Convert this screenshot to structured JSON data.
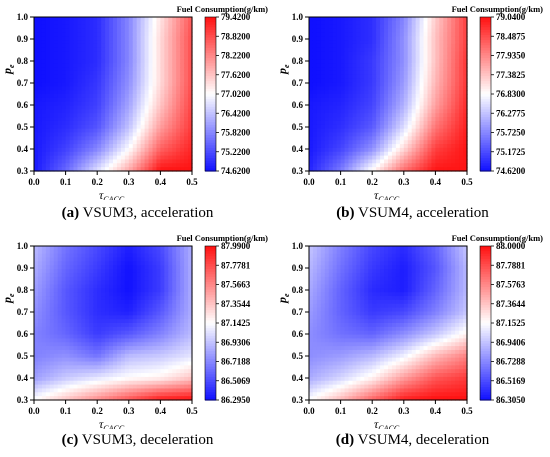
{
  "colors": {
    "low": "#1010ff",
    "mid": "#ffffff",
    "high": "#ff1010"
  },
  "chart_data": [
    {
      "type": "heatmap",
      "panel_letter": "(a)",
      "caption_rest": " VSUM3, acceleration",
      "colorbar_title": "Fuel Consumption(g/km)",
      "colorbar_ticks": [
        "79.4200",
        "78.8200",
        "78.2200",
        "77.6200",
        "77.0200",
        "76.4200",
        "75.8200",
        "75.2200",
        "74.6200"
      ],
      "zlim": [
        74.62,
        79.42
      ],
      "xlabel_main": "τ",
      "xlabel_sub": "CACC",
      "ylabel_main": "p",
      "ylabel_sub": "e",
      "xlim": [
        0.0,
        0.5
      ],
      "ylim": [
        0.3,
        1.0
      ],
      "x_ticks": [
        "0.0",
        "0.1",
        "0.2",
        "0.3",
        "0.4",
        "0.5"
      ],
      "y_ticks": [
        "0.3",
        "0.4",
        "0.5",
        "0.6",
        "0.7",
        "0.8",
        "0.9",
        "1.0"
      ],
      "x": [
        0.0,
        0.1,
        0.2,
        0.3,
        0.4,
        0.5
      ],
      "y": [
        0.3,
        0.4,
        0.5,
        0.6,
        0.7,
        0.8,
        0.9,
        1.0
      ],
      "z": [
        [
          74.7,
          75.5,
          76.7,
          77.9,
          79.4,
          79.4
        ],
        [
          74.7,
          75.1,
          75.8,
          77.0,
          78.6,
          79.2
        ],
        [
          74.7,
          74.9,
          75.3,
          76.4,
          78.0,
          79.0
        ],
        [
          74.7,
          74.8,
          75.1,
          76.1,
          77.6,
          78.9
        ],
        [
          74.6,
          74.7,
          75.0,
          75.9,
          77.4,
          78.8
        ],
        [
          74.6,
          74.7,
          74.9,
          75.8,
          77.4,
          78.8
        ],
        [
          74.6,
          74.7,
          74.9,
          75.8,
          77.4,
          78.8
        ],
        [
          74.6,
          74.7,
          74.9,
          75.8,
          77.3,
          78.7
        ]
      ]
    },
    {
      "type": "heatmap",
      "panel_letter": "(b)",
      "caption_rest": " VSUM4, acceleration",
      "colorbar_title": "Fuel Consumption(g/km)",
      "colorbar_ticks": [
        "79.0400",
        "78.4875",
        "77.9350",
        "77.3825",
        "76.8300",
        "76.2775",
        "75.7250",
        "75.1725",
        "74.6200"
      ],
      "zlim": [
        74.62,
        79.04
      ],
      "xlabel_main": "τ",
      "xlabel_sub": "CACC",
      "ylabel_main": "p",
      "ylabel_sub": "e",
      "xlim": [
        0.0,
        0.5
      ],
      "ylim": [
        0.3,
        1.0
      ],
      "x_ticks": [
        "0.0",
        "0.1",
        "0.2",
        "0.3",
        "0.4",
        "0.5"
      ],
      "y_ticks": [
        "0.3",
        "0.4",
        "0.5",
        "0.6",
        "0.7",
        "0.8",
        "0.9",
        "1.0"
      ],
      "x": [
        0.0,
        0.1,
        0.2,
        0.3,
        0.4,
        0.5
      ],
      "y": [
        0.3,
        0.4,
        0.5,
        0.6,
        0.7,
        0.8,
        0.9,
        1.0
      ],
      "z": [
        [
          74.8,
          75.6,
          76.9,
          78.2,
          79.0,
          79.0
        ],
        [
          74.7,
          75.1,
          75.8,
          77.2,
          78.6,
          79.0
        ],
        [
          74.7,
          74.9,
          75.3,
          76.5,
          78.1,
          78.9
        ],
        [
          74.7,
          74.8,
          75.1,
          76.1,
          77.7,
          78.8
        ],
        [
          74.6,
          74.7,
          75.0,
          75.9,
          77.5,
          78.7
        ],
        [
          74.6,
          74.7,
          75.0,
          75.8,
          77.4,
          78.7
        ],
        [
          74.6,
          74.7,
          74.9,
          75.8,
          77.4,
          78.6
        ],
        [
          74.6,
          74.7,
          74.9,
          75.7,
          77.3,
          78.6
        ]
      ]
    },
    {
      "type": "heatmap",
      "panel_letter": "(c)",
      "caption_rest": " VSUM3, deceleration",
      "colorbar_title": "Fuel Consumption(g/km)",
      "colorbar_ticks": [
        "87.9900",
        "87.7781",
        "87.5663",
        "87.3544",
        "87.1425",
        "86.9306",
        "86.7188",
        "86.5069",
        "86.2950"
      ],
      "zlim": [
        86.295,
        87.99
      ],
      "xlabel_main": "τ",
      "xlabel_sub": "CACC",
      "ylabel_main": "p",
      "ylabel_sub": "e",
      "xlim": [
        0.0,
        0.5
      ],
      "ylim": [
        0.3,
        1.0
      ],
      "x_ticks": [
        "0.0",
        "0.1",
        "0.2",
        "0.3",
        "0.4",
        "0.5"
      ],
      "y_ticks": [
        "0.3",
        "0.4",
        "0.5",
        "0.6",
        "0.7",
        "0.8",
        "0.9",
        "1.0"
      ],
      "x": [
        0.0,
        0.1,
        0.2,
        0.3,
        0.4,
        0.5
      ],
      "y": [
        0.3,
        0.4,
        0.5,
        0.6,
        0.7,
        0.8,
        0.9,
        1.0
      ],
      "z": [
        [
          87.15,
          87.35,
          87.55,
          87.75,
          87.95,
          87.99
        ],
        [
          86.8,
          86.95,
          87.05,
          87.15,
          87.2,
          87.35
        ],
        [
          86.7,
          86.75,
          86.65,
          86.9,
          86.95,
          87.05
        ],
        [
          86.7,
          86.6,
          86.45,
          86.55,
          86.7,
          86.9
        ],
        [
          86.75,
          86.55,
          86.4,
          86.35,
          86.55,
          86.85
        ],
        [
          86.8,
          86.55,
          86.4,
          86.3,
          86.45,
          86.85
        ],
        [
          86.85,
          86.6,
          86.45,
          86.3,
          86.45,
          86.85
        ],
        [
          86.9,
          86.65,
          86.5,
          86.35,
          86.5,
          86.85
        ]
      ]
    },
    {
      "type": "heatmap",
      "panel_letter": "(d)",
      "caption_rest": " VSUM4, deceleration",
      "colorbar_title": "Fuel Consumption(g/km)",
      "colorbar_ticks": [
        "88.0000",
        "87.7881",
        "87.5763",
        "87.3644",
        "87.1525",
        "86.9406",
        "86.7288",
        "86.5169",
        "86.3050"
      ],
      "zlim": [
        86.305,
        88.0
      ],
      "xlabel_main": "τ",
      "xlabel_sub": "CACC",
      "ylabel_main": "p",
      "ylabel_sub": "e",
      "xlim": [
        0.0,
        0.5
      ],
      "ylim": [
        0.3,
        1.0
      ],
      "x_ticks": [
        "0.0",
        "0.1",
        "0.2",
        "0.3",
        "0.4",
        "0.5"
      ],
      "y_ticks": [
        "0.3",
        "0.4",
        "0.5",
        "0.6",
        "0.7",
        "0.8",
        "0.9",
        "1.0"
      ],
      "x": [
        0.0,
        0.1,
        0.2,
        0.3,
        0.4,
        0.5
      ],
      "y": [
        0.3,
        0.4,
        0.5,
        0.6,
        0.7,
        0.8,
        0.9,
        1.0
      ],
      "z": [
        [
          87.15,
          87.4,
          87.7,
          87.95,
          88.0,
          88.0
        ],
        [
          86.85,
          87.0,
          87.2,
          87.5,
          87.75,
          87.85
        ],
        [
          86.75,
          86.8,
          86.9,
          87.1,
          87.4,
          87.6
        ],
        [
          86.75,
          86.65,
          86.6,
          86.75,
          86.95,
          87.2
        ],
        [
          86.8,
          86.6,
          86.45,
          86.5,
          86.7,
          86.95
        ],
        [
          86.85,
          86.6,
          86.4,
          86.35,
          86.6,
          86.9
        ],
        [
          86.9,
          86.65,
          86.45,
          86.35,
          86.55,
          86.9
        ],
        [
          86.95,
          86.7,
          86.5,
          86.4,
          86.6,
          86.95
        ]
      ]
    }
  ]
}
